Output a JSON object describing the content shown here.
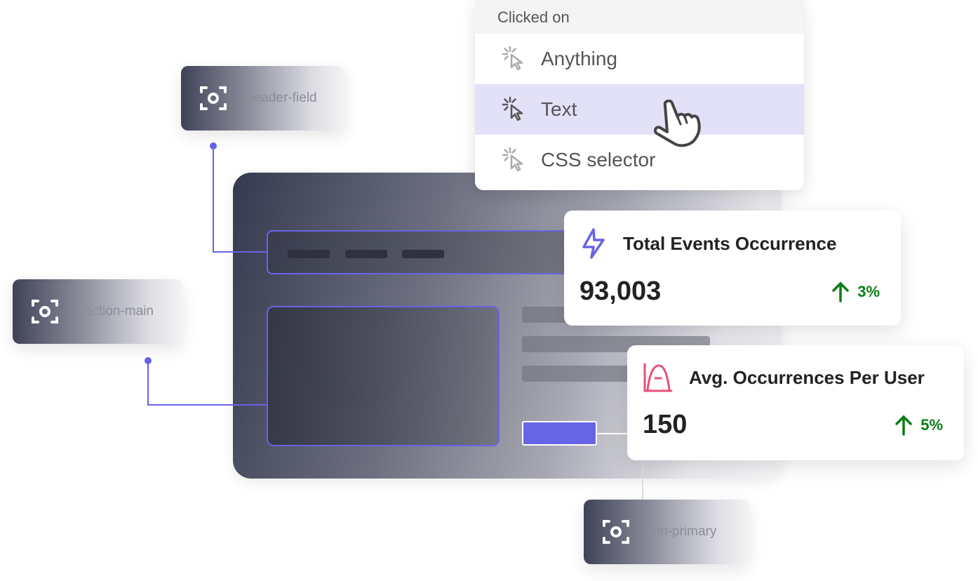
{
  "dropdown": {
    "header": "Clicked on",
    "items": [
      {
        "label": "Anything",
        "icon": "click-cursor-icon",
        "selected": false
      },
      {
        "label": "Text",
        "icon": "click-cursor-icon",
        "selected": true
      },
      {
        "label": "CSS selector",
        "icon": "click-cursor-icon",
        "selected": false
      }
    ]
  },
  "selectors": {
    "header": ".header-field",
    "section": ".section-main",
    "button": ".btn-primary"
  },
  "cards": [
    {
      "title": "Total Events Occurrence",
      "icon": "lightning-icon",
      "value": "93,003",
      "change": "3%",
      "direction": "up"
    },
    {
      "title": "Avg. Occurrences Per User",
      "icon": "bell-curve-icon",
      "value": "150",
      "change": "5%",
      "direction": "up"
    }
  ],
  "colors": {
    "accent": "#6764e6",
    "positive": "#0a7d14",
    "highlight": "#e2e1f8",
    "curve": "#e8507a"
  }
}
